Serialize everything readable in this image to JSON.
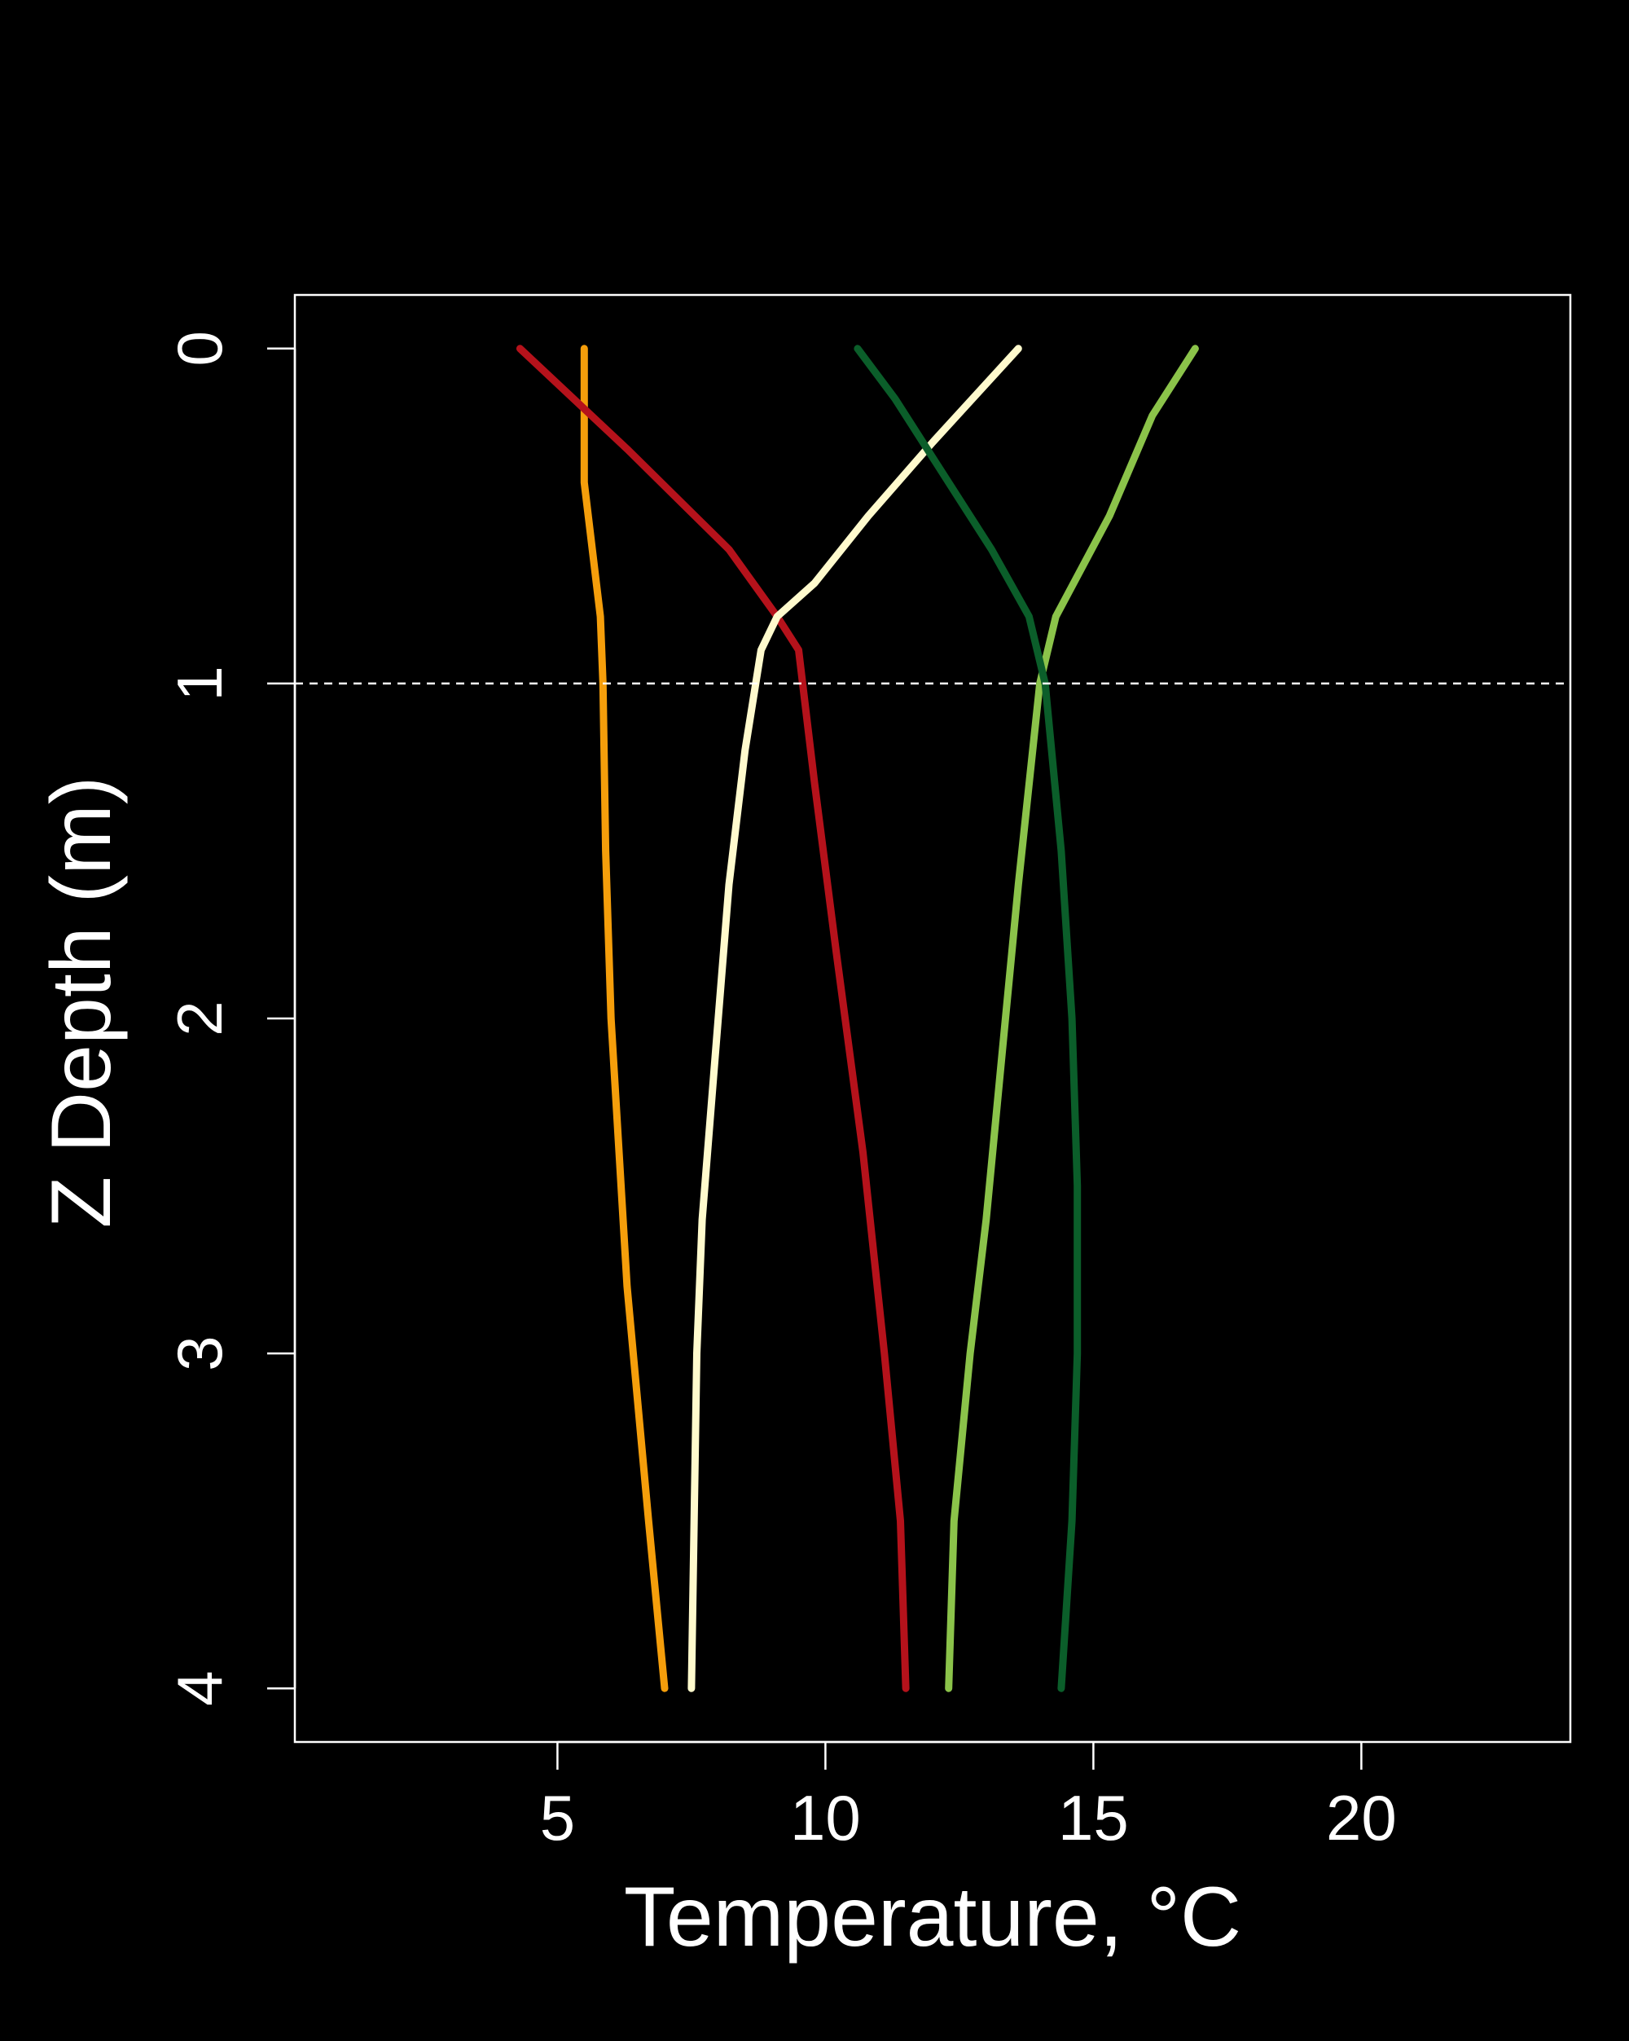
{
  "chart_data": {
    "type": "line",
    "xlabel": "Temperature, °C",
    "ylabel": "Z Depth (m)",
    "xlim": [
      0.1,
      23.9
    ],
    "ylim": [
      4.16,
      -0.16
    ],
    "y_reversed": true,
    "x_ticks": [
      5,
      10,
      15,
      20
    ],
    "x_tick_labels": [
      "5",
      "10",
      "15",
      "20"
    ],
    "y_ticks": [
      0,
      1,
      2,
      3,
      4
    ],
    "y_tick_labels": [
      "0",
      "1",
      "2",
      "3",
      "4"
    ],
    "reference_line": {
      "y": 1,
      "style": "dashed",
      "color": "#ffffff"
    },
    "background": "#000000",
    "foreground": "#ffffff",
    "grid": false,
    "series": [
      {
        "color": "#f59e0b",
        "points": [
          [
            5.5,
            0
          ],
          [
            5.5,
            0.4
          ],
          [
            5.8,
            0.8
          ],
          [
            5.85,
            1.0
          ],
          [
            5.9,
            1.5
          ],
          [
            6.0,
            2.0
          ],
          [
            6.3,
            2.8
          ],
          [
            6.7,
            3.5
          ],
          [
            7.0,
            4.0
          ]
        ]
      },
      {
        "color": "#b5121b",
        "points": [
          [
            4.3,
            0
          ],
          [
            6.3,
            0.3
          ],
          [
            8.2,
            0.6
          ],
          [
            9.1,
            0.8
          ],
          [
            9.5,
            0.9
          ],
          [
            9.8,
            1.3
          ],
          [
            10.2,
            1.8
          ],
          [
            10.7,
            2.4
          ],
          [
            11.1,
            3.0
          ],
          [
            11.4,
            3.5
          ],
          [
            11.5,
            4.0
          ]
        ]
      },
      {
        "color": "#fffacd",
        "points": [
          [
            13.6,
            0
          ],
          [
            12.0,
            0.28
          ],
          [
            10.8,
            0.5
          ],
          [
            9.8,
            0.7
          ],
          [
            9.1,
            0.8
          ],
          [
            8.8,
            0.9
          ],
          [
            8.5,
            1.2
          ],
          [
            8.2,
            1.6
          ],
          [
            7.9,
            2.2
          ],
          [
            7.7,
            2.6
          ],
          [
            7.6,
            3.0
          ],
          [
            7.55,
            3.5
          ],
          [
            7.5,
            4.0
          ]
        ]
      },
      {
        "color": "#8bc34a",
        "points": [
          [
            16.9,
            0
          ],
          [
            16.1,
            0.2
          ],
          [
            15.3,
            0.5
          ],
          [
            14.3,
            0.8
          ],
          [
            14.0,
            1.0
          ],
          [
            13.6,
            1.6
          ],
          [
            13.3,
            2.1
          ],
          [
            13.0,
            2.6
          ],
          [
            12.7,
            3.0
          ],
          [
            12.4,
            3.5
          ],
          [
            12.3,
            4.0
          ]
        ]
      },
      {
        "color": "#0b5e2a",
        "points": [
          [
            10.6,
            0
          ],
          [
            11.3,
            0.15
          ],
          [
            12.3,
            0.4
          ],
          [
            13.1,
            0.6
          ],
          [
            13.8,
            0.8
          ],
          [
            14.1,
            1.0
          ],
          [
            14.4,
            1.5
          ],
          [
            14.6,
            2.0
          ],
          [
            14.7,
            2.5
          ],
          [
            14.7,
            3.0
          ],
          [
            14.6,
            3.5
          ],
          [
            14.4,
            4.0
          ]
        ]
      }
    ]
  }
}
